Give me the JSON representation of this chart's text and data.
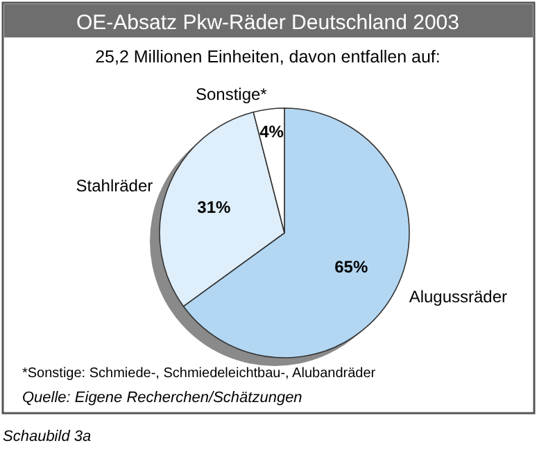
{
  "chart_data": {
    "type": "pie",
    "title": "OE-Absatz Pkw-Räder Deutschland 2003",
    "subtitle": "25,2 Millionen Einheiten, davon entfallen auf:",
    "categories": [
      "Alugussräder",
      "Stahlräder",
      "Sonstige*"
    ],
    "values": [
      65,
      31,
      4
    ],
    "value_labels": [
      "65%",
      "31%",
      "4%"
    ],
    "colors": [
      "#b3d7f2",
      "#deeefa",
      "#ffffff"
    ],
    "annotations": [
      "*Sonstige: Schmiede-, Schmiedeleichtbau-, Alubandräder",
      "Quelle: Eigene Recherchen/Schätzungen",
      "Schaubild 3a"
    ]
  }
}
